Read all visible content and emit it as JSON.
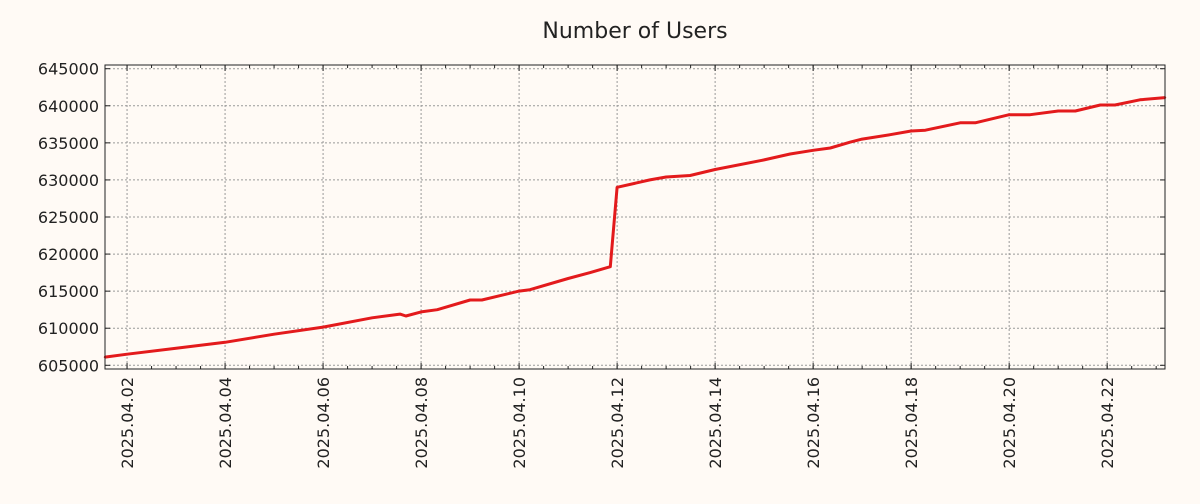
{
  "chart_data": {
    "type": "line",
    "title": "Number of Users",
    "xlabel": "",
    "ylabel": "",
    "x_unit": "days since 2025.04.01 00:00",
    "xlim": [
      1.55,
      23.18
    ],
    "ylim": [
      604500,
      645500
    ],
    "grid": true,
    "line_color": "#e31a1c",
    "y_ticks": [
      605000,
      610000,
      615000,
      620000,
      625000,
      630000,
      635000,
      640000,
      645000
    ],
    "y_tick_labels": [
      "605000",
      "610000",
      "615000",
      "620000",
      "625000",
      "630000",
      "635000",
      "640000",
      "645000"
    ],
    "x_ticks": [
      2,
      4,
      6,
      8,
      10,
      12,
      14,
      16,
      18,
      20,
      22
    ],
    "x_tick_labels": [
      "2025.04.02",
      "2025.04.04",
      "2025.04.06",
      "2025.04.08",
      "2025.04.10",
      "2025.04.12",
      "2025.04.14",
      "2025.04.16",
      "2025.04.18",
      "2025.04.20",
      "2025.04.22"
    ],
    "series": [
      {
        "name": "Number of Users",
        "x": [
          1.55,
          2.0,
          3.0,
          4.0,
          5.0,
          6.0,
          7.0,
          7.57,
          7.69,
          8.0,
          8.33,
          9.0,
          9.24,
          10.0,
          10.22,
          11.0,
          11.45,
          11.86,
          12.0,
          12.67,
          13.0,
          13.49,
          14.0,
          15.0,
          15.53,
          16.0,
          16.35,
          16.76,
          17.0,
          17.57,
          18.0,
          18.29,
          19.0,
          19.31,
          20.0,
          20.43,
          21.0,
          21.35,
          21.86,
          22.16,
          22.67,
          23.18
        ],
        "values": [
          606100,
          606500,
          607300,
          608100,
          609200,
          610150,
          611400,
          611900,
          611650,
          612200,
          612500,
          613800,
          613800,
          615000,
          615200,
          616700,
          617500,
          618300,
          629000,
          630000,
          630400,
          630600,
          631400,
          632700,
          633500,
          634000,
          634300,
          635100,
          635500,
          636100,
          636600,
          636700,
          637700,
          637700,
          638800,
          638800,
          639300,
          639300,
          640100,
          640100,
          640800,
          641100
        ]
      }
    ]
  }
}
